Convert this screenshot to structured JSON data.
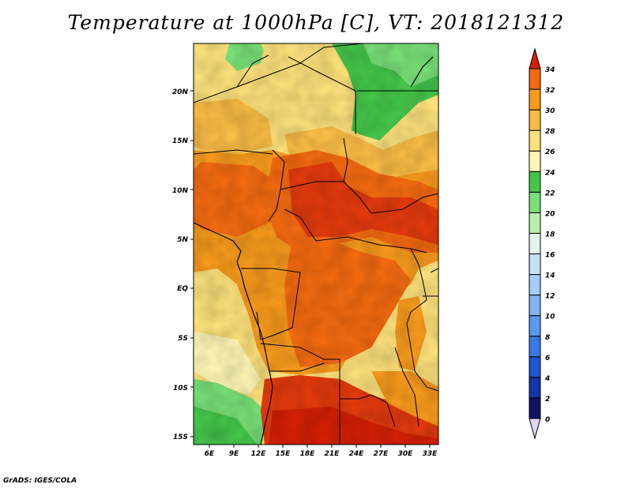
{
  "title": "Temperature at 1000hPa [C], VT: 2018121312",
  "credit": "GrADS: IGES/COLA",
  "map": {
    "lat_labels": [
      "20N",
      "15N",
      "10N",
      "5N",
      "EQ",
      "5S",
      "10S",
      "15S"
    ],
    "lon_labels": [
      "6E",
      "9E",
      "12E",
      "15E",
      "18E",
      "21E",
      "24E",
      "27E",
      "30E",
      "33E"
    ]
  },
  "colorbar": {
    "labels": [
      "0",
      "2",
      "4",
      "6",
      "8",
      "10",
      "12",
      "14",
      "16",
      "18",
      "20",
      "22",
      "24",
      "26",
      "28",
      "30",
      "32",
      "34"
    ],
    "colors": [
      "#0d1466",
      "#1535a8",
      "#1f56d1",
      "#3a78e6",
      "#5b98f0",
      "#80b4f4",
      "#a4ccf7",
      "#c6e3f6",
      "#e0f6ec",
      "#b5f0a9",
      "#78e077",
      "#44c64a",
      "#fff7b4",
      "#fde17b",
      "#fbbd45",
      "#f79a1c",
      "#f36a10",
      "#e43a0c",
      "#d51f05"
    ]
  }
}
